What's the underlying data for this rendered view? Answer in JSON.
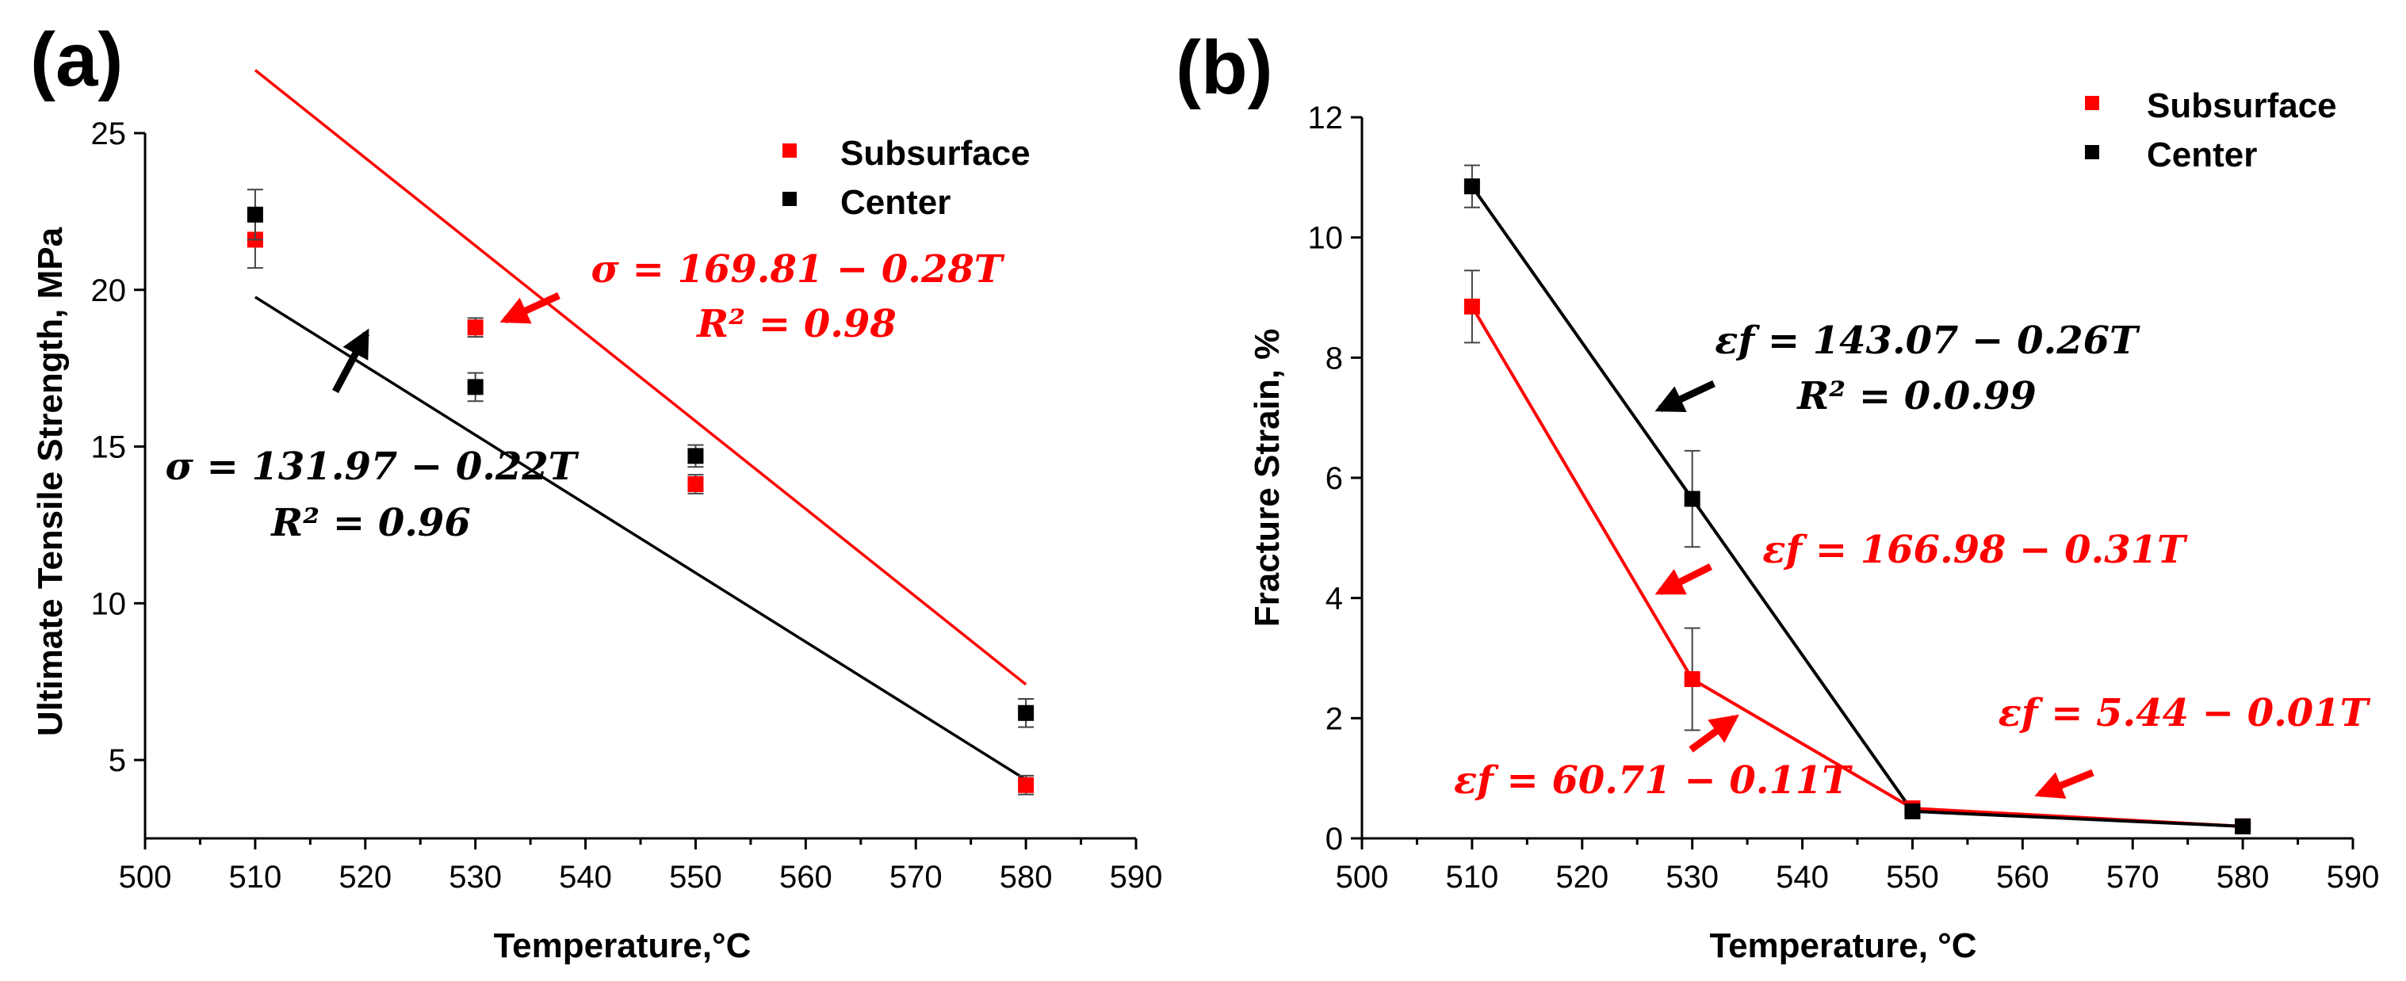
{
  "chart_data": [
    {
      "panel": "(a)",
      "type": "scatter",
      "xlabel": "Temperature,°C",
      "ylabel": "Ultimate Tensile Strength, MPa",
      "xlim": [
        500,
        590
      ],
      "ylim": [
        2.5,
        25
      ],
      "xticks": [
        500,
        510,
        520,
        530,
        540,
        550,
        560,
        570,
        580,
        590
      ],
      "yticks": [
        5,
        10,
        15,
        20,
        25
      ],
      "legend_position": "top-right",
      "series": [
        {
          "name": "Subsurface",
          "color": "#ff0000",
          "x": [
            510,
            530,
            550,
            580
          ],
          "y": [
            21.6,
            18.8,
            13.8,
            4.2
          ],
          "yerr": [
            0.9,
            0.3,
            0.3,
            0.3
          ],
          "fit": {
            "type": "linear",
            "intercept": 169.81,
            "slope": -0.28,
            "x_range": [
              510,
              580
            ]
          }
        },
        {
          "name": "Center",
          "color": "#000000",
          "x": [
            510,
            530,
            550,
            580
          ],
          "y": [
            22.4,
            16.9,
            14.7,
            6.5
          ],
          "yerr": [
            0.8,
            0.45,
            0.35,
            0.45
          ],
          "fit": {
            "type": "linear",
            "intercept": 131.97,
            "slope": -0.22,
            "x_range": [
              510,
              580
            ]
          }
        }
      ],
      "annotations": [
        {
          "color": "#ff0000",
          "line1": "σ = 169.81 − 0.28T",
          "line2": "R² = 0.98"
        },
        {
          "color": "#000000",
          "line1": "σ = 131.97 − 0.22T",
          "line2": "R² = 0.96"
        }
      ]
    },
    {
      "panel": "(b)",
      "type": "line",
      "xlabel": "Temperature, °C",
      "ylabel": "Fracture Strain, %",
      "xlim": [
        500,
        590
      ],
      "ylim": [
        0,
        12
      ],
      "xticks": [
        500,
        510,
        520,
        530,
        540,
        550,
        560,
        570,
        580,
        590
      ],
      "yticks": [
        0,
        2,
        4,
        6,
        8,
        10,
        12
      ],
      "legend_position": "top-right",
      "series": [
        {
          "name": "Subsurface",
          "color": "#ff0000",
          "x": [
            510,
            530,
            550,
            580
          ],
          "y": [
            8.85,
            2.65,
            0.5,
            0.2
          ],
          "yerr": [
            0.6,
            0.85,
            0.05,
            0.05
          ]
        },
        {
          "name": "Center",
          "color": "#000000",
          "x": [
            510,
            530,
            550,
            580
          ],
          "y": [
            10.85,
            5.65,
            0.45,
            0.2
          ],
          "yerr": [
            0.35,
            0.8,
            0.05,
            0.05
          ]
        }
      ],
      "annotations": [
        {
          "color": "#000000",
          "line1": "εf = 143.07 − 0.26T",
          "line2": "R² = 0.0.99"
        },
        {
          "color": "#ff0000",
          "line1": "εf = 166.98 − 0.31T"
        },
        {
          "color": "#ff0000",
          "line1": "εf = 60.71 − 0.11T"
        },
        {
          "color": "#ff0000",
          "line1": "εf = 5.44 − 0.01T"
        }
      ]
    }
  ]
}
